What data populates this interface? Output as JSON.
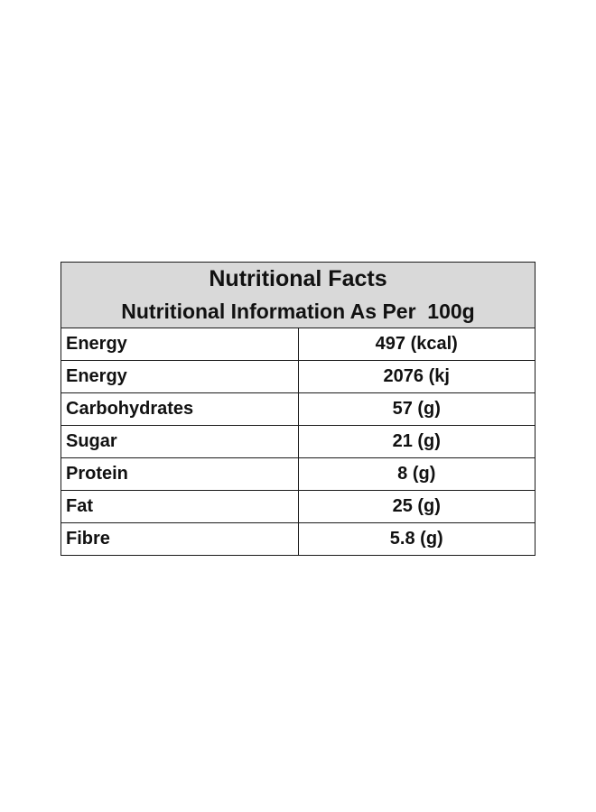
{
  "table": {
    "title": "Nutritional Facts",
    "subtitle": "Nutritional Information As Per  100g",
    "rows": [
      {
        "label": "Energy",
        "value": "497 (kcal)"
      },
      {
        "label": "Energy",
        "value": "2076 (kj"
      },
      {
        "label": "Carbohydrates",
        "value": "57 (g)"
      },
      {
        "label": "Sugar",
        "value": "21 (g)"
      },
      {
        "label": "Protein",
        "value": "8 (g)"
      },
      {
        "label": "Fat",
        "value": "25 (g)"
      },
      {
        "label": "Fibre",
        "value": "5.8 (g)"
      }
    ],
    "colors": {
      "header_background": "#d9d9d9",
      "border": "#1a1a1a",
      "text": "#111111"
    }
  }
}
